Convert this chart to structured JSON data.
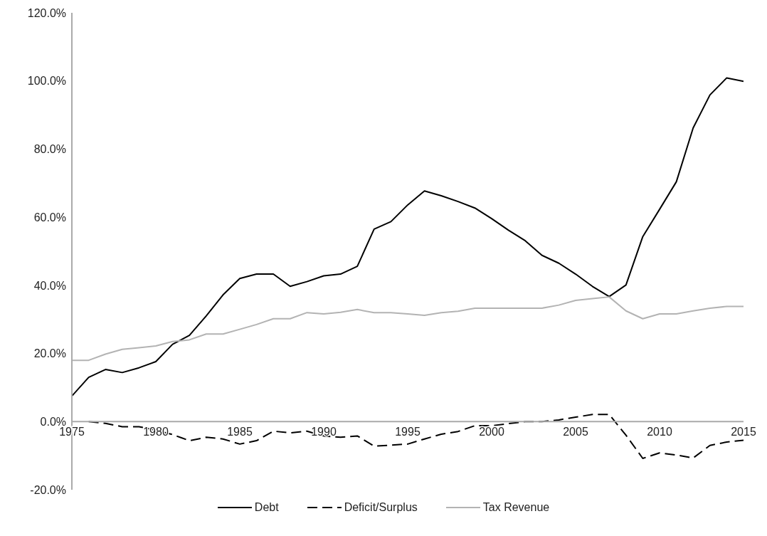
{
  "chart_data": {
    "type": "line",
    "x": [
      1975,
      1976,
      1977,
      1978,
      1979,
      1980,
      1981,
      1982,
      1983,
      1984,
      1985,
      1986,
      1987,
      1988,
      1989,
      1990,
      1991,
      1992,
      1993,
      1994,
      1995,
      1996,
      1997,
      1998,
      1999,
      2000,
      2001,
      2002,
      2003,
      2004,
      2005,
      2006,
      2007,
      2008,
      2009,
      2010,
      2011,
      2012,
      2013,
      2014,
      2015
    ],
    "series": [
      {
        "name": "Debt",
        "color": "#000000",
        "line_style": "solid",
        "values": [
          7.5,
          13,
          15.3,
          14.4,
          15.8,
          17.6,
          22.7,
          25.3,
          31,
          37.2,
          42,
          43.3,
          43.3,
          39.7,
          41.1,
          42.8,
          43.3,
          45.6,
          56.5,
          58.7,
          63.6,
          67.7,
          66.3,
          64.6,
          62.7,
          59.6,
          56.2,
          53.1,
          48.8,
          46.5,
          43.3,
          39.7,
          36.7,
          40.1,
          54.3,
          62.3,
          70.4,
          86.2,
          95.9,
          100.9,
          99.9
        ]
      },
      {
        "name": "Deficit/Surplus",
        "color": "#000000",
        "line_style": "dashed",
        "values": [
          null,
          0,
          -0.5,
          -1.5,
          -1.5,
          -2.5,
          -3.8,
          -5.6,
          -4.6,
          -5.1,
          -6.6,
          -5.6,
          -2.8,
          -3.3,
          -2.8,
          -4.2,
          -4.6,
          -4.2,
          -7.2,
          -6.9,
          -6.6,
          -5.1,
          -3.7,
          -2.9,
          -1.2,
          -1.2,
          -0.6,
          0,
          0,
          0.5,
          1.3,
          2.1,
          2.1,
          -4,
          -10.8,
          -9.2,
          -9.8,
          -10.7,
          -7,
          -6,
          -5.5
        ]
      },
      {
        "name": "Tax Revenue",
        "color": "#b3b3b3",
        "line_style": "solid",
        "values": [
          18,
          18,
          19.8,
          21.2,
          21.7,
          22.2,
          23.5,
          24,
          25.7,
          25.7,
          27.1,
          28.5,
          30.2,
          30.2,
          32,
          31.6,
          32.1,
          32.9,
          32,
          32,
          31.6,
          31.2,
          32,
          32.4,
          33.3,
          33.3,
          33.3,
          33.3,
          33.3,
          34.2,
          35.6,
          36.1,
          36.6,
          32.5,
          30.2,
          31.6,
          31.6,
          32.5,
          33.3,
          33.8,
          33.8
        ]
      }
    ],
    "xlim": [
      1975,
      2015
    ],
    "xticks": [
      1975,
      1980,
      1985,
      1990,
      1995,
      2000,
      2005,
      2010,
      2015
    ],
    "ylim": [
      -20,
      120
    ],
    "yticks": [
      {
        "value": -20,
        "label": "-20.0%"
      },
      {
        "value": 0,
        "label": "0.0%"
      },
      {
        "value": 20,
        "label": "20.0%"
      },
      {
        "value": 40,
        "label": "40.0%"
      },
      {
        "value": 60,
        "label": "60.0%"
      },
      {
        "value": 80,
        "label": "80.0%"
      },
      {
        "value": 100,
        "label": "100.0%"
      },
      {
        "value": 120,
        "label": "120.0%"
      }
    ],
    "grid": false,
    "legend": "bottom",
    "marker": "none"
  }
}
